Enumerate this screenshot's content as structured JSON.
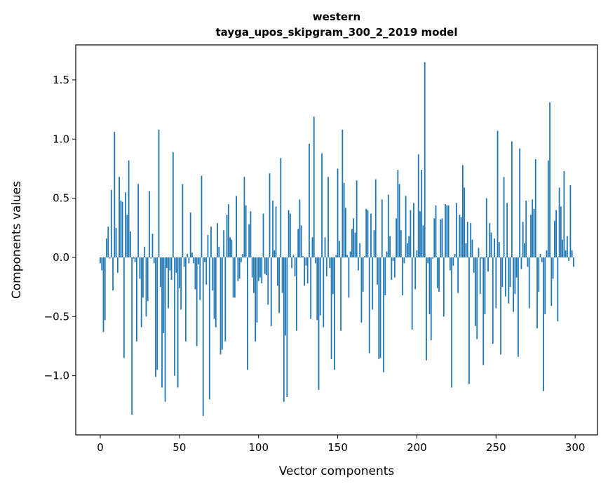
{
  "chart_data": {
    "type": "bar",
    "title_line1": "western",
    "title_line2": "tayga_upos_skipgram_300_2_2019 model",
    "xlabel": "Vector components",
    "ylabel": "Components values",
    "xlim": [
      -15.5,
      314.1
    ],
    "ylim": [
      -1.5,
      1.796
    ],
    "xticks": [
      0,
      50,
      100,
      150,
      200,
      250,
      300
    ],
    "xtick_labels": [
      "0",
      "50",
      "100",
      "150",
      "200",
      "250",
      "300"
    ],
    "yticks": [
      -1.0,
      -0.5,
      0.0,
      0.5,
      1.0,
      1.5
    ],
    "ytick_labels": [
      "−1.0",
      "−0.5",
      "0.0",
      "0.5",
      "1.0",
      "1.5"
    ],
    "grid": false,
    "bar_color": "#1f77b4",
    "values": [
      -0.05,
      -0.11,
      -0.63,
      -0.53,
      0.16,
      0.26,
      -0.01,
      0.57,
      -0.28,
      1.06,
      0.25,
      -0.13,
      0.68,
      0.48,
      0.47,
      -0.85,
      0.55,
      0.36,
      0.82,
      0.22,
      -1.33,
      -0.01,
      -0.04,
      -0.71,
      0.62,
      -0.18,
      -0.59,
      -0.34,
      0.09,
      -0.5,
      -0.37,
      0.56,
      -0.01,
      0.2,
      -0.05,
      -1.01,
      -0.95,
      1.08,
      -0.25,
      -1.1,
      -0.64,
      -1.22,
      -0.09,
      -0.43,
      -0.11,
      -0.19,
      0.89,
      -1.0,
      -0.13,
      -1.1,
      -0.26,
      -0.44,
      0.62,
      -0.08,
      -0.71,
      0.03,
      -0.05,
      0.38,
      0.04,
      -0.05,
      -0.27,
      -0.75,
      -0.06,
      -0.36,
      0.69,
      -1.34,
      -0.04,
      -0.23,
      0.19,
      -1.2,
      0.26,
      -0.28,
      -0.52,
      -0.59,
      0.29,
      0.09,
      -0.82,
      -0.78,
      0.23,
      -0.71,
      0.36,
      0.45,
      0.17,
      0.15,
      -0.34,
      -0.34,
      0.52,
      -0.2,
      -0.18,
      -0.04,
      0.03,
      0.68,
      0.44,
      -0.95,
      0.28,
      0.39,
      -0.17,
      -0.3,
      -0.71,
      -0.55,
      -0.2,
      -0.17,
      -0.22,
      0.37,
      -0.14,
      -0.15,
      -0.4,
      0.71,
      -0.58,
      0.48,
      0.06,
      0.43,
      -0.24,
      -0.47,
      0.84,
      -0.3,
      -1.22,
      -0.66,
      -1.18,
      0.4,
      0.37,
      -0.09,
      0.02,
      -0.16,
      -0.62,
      0.24,
      0.49,
      0.27,
      0.01,
      -0.24,
      -0.07,
      -0.22,
      0.96,
      -0.52,
      0.17,
      1.19,
      -0.05,
      -0.53,
      -1.12,
      -0.49,
      0.88,
      -0.59,
      0.17,
      -0.16,
      0.68,
      -0.09,
      -0.86,
      -0.31,
      -0.95,
      0.02,
      0.75,
      0.14,
      -0.62,
      1.08,
      0.63,
      0.42,
      0.02,
      -0.34,
      0.05,
      0.24,
      0.33,
      0.21,
      0.65,
      -0.11,
      0.12,
      -0.55,
      -0.29,
      0.01,
      0.41,
      0.4,
      -0.81,
      0.37,
      -0.44,
      0.23,
      0.66,
      -0.23,
      -0.86,
      -0.85,
      0.49,
      -0.97,
      -0.32,
      0.05,
      0.53,
      0.18,
      -0.19,
      -0.03,
      -0.17,
      0.33,
      0.74,
      0.62,
      0.23,
      -0.32,
      -0.05,
      0.52,
      0.12,
      0.18,
      0.4,
      -0.61,
      0.46,
      -0.27,
      0.06,
      0.87,
      0.39,
      0.74,
      0.27,
      1.65,
      -0.87,
      -0.05,
      -0.48,
      -0.7,
      -0.01,
      0.33,
      0.44,
      -0.26,
      -0.29,
      0.32,
      0.33,
      -0.5,
      0.45,
      0.44,
      0.44,
      -0.11,
      -1.1,
      -0.07,
      0.03,
      0.46,
      -0.3,
      0.36,
      0.34,
      0.78,
      0.59,
      0.12,
      0.3,
      -1.07,
      0.29,
      0.15,
      -0.13,
      -0.58,
      -0.69,
      0.08,
      -0.31,
      -0.01,
      -0.91,
      -0.48,
      0.5,
      -0.12,
      0.29,
      0.21,
      -0.73,
      0.16,
      -0.43,
      1.07,
      0.13,
      -0.82,
      -0.25,
      0.68,
      -0.33,
      0.46,
      -0.39,
      -0.25,
      0.98,
      -0.46,
      -0.31,
      -0.17,
      -0.84,
      0.92,
      -0.1,
      0.3,
      0.12,
      0.48,
      -0.08,
      -0.43,
      0.36,
      0.49,
      0.41,
      0.83,
      -0.6,
      -0.29,
      0.03,
      -0.04,
      -1.13,
      -0.48,
      0.06,
      0.82,
      1.31,
      -0.41,
      -0.18,
      0.31,
      0.4,
      -0.54,
      0.59,
      0.43,
      0.15,
      0.73,
      0.06,
      0.18,
      -0.03,
      0.61,
      0.06,
      -0.08
    ]
  }
}
